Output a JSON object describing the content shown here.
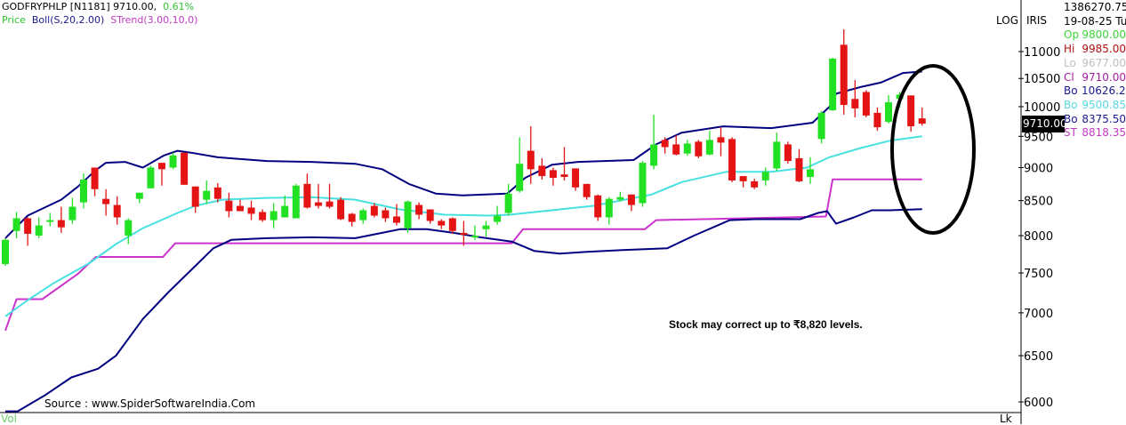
{
  "header": {
    "symbol_line": "GODFRYPHLP [N1181] 9710.00,",
    "change": "0.61%",
    "price_label": "Price",
    "boll_label": "Boll(S,20,2.00)",
    "strend_label": "STrend(3.00,10,0)"
  },
  "axis": {
    "log_label": "LOG",
    "iris_label": "IRIS",
    "price_tag": "9710.00",
    "vol_label": "Vol",
    "vol_unit": "Lk"
  },
  "info_panel": {
    "volume": "1386270.75",
    "date": "19-08-25 Tu",
    "rows": [
      {
        "label": "Op",
        "value": "9800.00",
        "color": "#3ad43a"
      },
      {
        "label": "Hi",
        "value": "9985.00",
        "color": "#b01010"
      },
      {
        "label": "Lo",
        "value": "9677.00",
        "color": "#c0c0c0"
      },
      {
        "label": "Cl",
        "value": "9710.00",
        "color": "#a020a0"
      },
      {
        "label": "Bo",
        "value": "10626.20",
        "color": "#1a1a8c"
      },
      {
        "label": "Bo",
        "value": "9500.85",
        "color": "#5ad8e0"
      },
      {
        "label": "Bo",
        "value": "8375.50",
        "color": "#1a1a8c"
      },
      {
        "label": "ST",
        "value": "8818.35",
        "color": "#c03cc0"
      }
    ]
  },
  "annotation": "Stock may correct up to ₹8,820 levels.",
  "source": "Source : www.SpiderSoftwareIndia.Com",
  "chart_data": {
    "type": "candlestick",
    "y_scale": "log",
    "ylim": [
      5900,
      11500
    ],
    "y_ticks": [
      6000,
      6500,
      7000,
      7500,
      8000,
      8500,
      9000,
      9500,
      10000,
      10500,
      11000
    ],
    "colors": {
      "up": "#22e022",
      "down": "#e41414",
      "upper_band": "#000080",
      "middle_band": "#48e0e0",
      "lower_band": "#000080",
      "supertrend": "#cc33cc",
      "highlight_ellipse": "#000000"
    },
    "candles_ohlc": [
      [
        7617,
        7965,
        7594,
        7942
      ],
      [
        8065,
        8334,
        7965,
        8244
      ],
      [
        8244,
        8257,
        7861,
        8026
      ],
      [
        8000,
        8257,
        7965,
        8142
      ],
      [
        8193,
        8321,
        8129,
        8218
      ],
      [
        8218,
        8410,
        8039,
        8116
      ],
      [
        8218,
        8540,
        8167,
        8410
      ],
      [
        8474,
        8908,
        8385,
        8815
      ],
      [
        9000,
        9000,
        8564,
        8670
      ],
      [
        8526,
        8670,
        8282,
        8449
      ],
      [
        8436,
        8564,
        8154,
        8257
      ],
      [
        8000,
        8244,
        7884,
        8218
      ],
      [
        8526,
        8617,
        8462,
        8617
      ],
      [
        8683,
        9029,
        8683,
        9000
      ],
      [
        9074,
        9074,
        8723,
        8974
      ],
      [
        9000,
        9235,
        8974,
        9191
      ],
      [
        9235,
        9235,
        8736,
        8736
      ],
      [
        8710,
        8710,
        8321,
        8410
      ],
      [
        8513,
        8802,
        8449,
        8645
      ],
      [
        8696,
        8762,
        8474,
        8526
      ],
      [
        8500,
        8617,
        8257,
        8346
      ],
      [
        8423,
        8513,
        8346,
        8346
      ],
      [
        8398,
        8500,
        8218,
        8308
      ],
      [
        8334,
        8372,
        8193,
        8218
      ],
      [
        8218,
        8462,
        8103,
        8346
      ],
      [
        8257,
        8577,
        8257,
        8423
      ],
      [
        8244,
        8749,
        8244,
        8723
      ],
      [
        8749,
        8908,
        8385,
        8398
      ],
      [
        8474,
        8749,
        8385,
        8423
      ],
      [
        8487,
        8749,
        8385,
        8410
      ],
      [
        8513,
        8551,
        8218,
        8231
      ],
      [
        8308,
        8321,
        8129,
        8193
      ],
      [
        8218,
        8385,
        8167,
        8359
      ],
      [
        8423,
        8462,
        8257,
        8282
      ],
      [
        8359,
        8398,
        8193,
        8244
      ],
      [
        8270,
        8449,
        8142,
        8180
      ],
      [
        8103,
        8500,
        8039,
        8487
      ],
      [
        8436,
        8474,
        8231,
        8295
      ],
      [
        8372,
        8372,
        8167,
        8206
      ],
      [
        8206,
        8231,
        8090,
        8142
      ],
      [
        8244,
        8257,
        8026,
        8065
      ],
      [
        8039,
        8206,
        7861,
        8013
      ],
      [
        7977,
        8142,
        7942,
        8000
      ],
      [
        8090,
        8206,
        7988,
        8142
      ],
      [
        8193,
        8423,
        8154,
        8282
      ],
      [
        8321,
        8749,
        8282,
        8604
      ],
      [
        8643,
        9485,
        8617,
        9059
      ],
      [
        9265,
        9666,
        8749,
        8974
      ],
      [
        9029,
        9147,
        8815,
        8868
      ],
      [
        8960,
        9000,
        8723,
        8842
      ],
      [
        8894,
        9324,
        8802,
        8855
      ],
      [
        8987,
        8987,
        8645,
        8696
      ],
      [
        8749,
        8749,
        8513,
        8551
      ],
      [
        8577,
        8590,
        8206,
        8257
      ],
      [
        8257,
        8551,
        8154,
        8526
      ],
      [
        8513,
        8630,
        8487,
        8551
      ],
      [
        8590,
        8590,
        8346,
        8436
      ],
      [
        8462,
        9103,
        8410,
        9074
      ],
      [
        9029,
        9863,
        8974,
        9368
      ],
      [
        9441,
        9485,
        9221,
        9324
      ],
      [
        9368,
        9515,
        9191,
        9206
      ],
      [
        9221,
        9441,
        9191,
        9382
      ],
      [
        9412,
        9441,
        9147,
        9177
      ],
      [
        9206,
        9591,
        9191,
        9441
      ],
      [
        9485,
        9651,
        9177,
        9397
      ],
      [
        9456,
        9485,
        8776,
        8802
      ],
      [
        8868,
        8868,
        8696,
        8789
      ],
      [
        8789,
        8828,
        8670,
        8696
      ],
      [
        8802,
        9000,
        8723,
        8934
      ],
      [
        8987,
        9561,
        8947,
        9412
      ],
      [
        9368,
        9412,
        9059,
        9103
      ],
      [
        9147,
        9294,
        8776,
        8789
      ],
      [
        8855,
        9162,
        8749,
        8974
      ],
      [
        9456,
        9924,
        9382,
        9894
      ],
      [
        9939,
        10883,
        9924,
        10866
      ],
      [
        11130,
        11430,
        9863,
        10030
      ],
      [
        10135,
        10470,
        9818,
        9970
      ],
      [
        10257,
        10288,
        9818,
        9848
      ],
      [
        9894,
        9985,
        9590,
        9650
      ],
      [
        9742,
        10200,
        9712,
        10076
      ],
      [
        10135,
        10257,
        9985,
        10211
      ],
      [
        10196,
        10196,
        9575,
        9666
      ],
      [
        9800,
        9985,
        9677,
        9710
      ]
    ],
    "upper_band": [
      [
        0,
        7965
      ],
      [
        2,
        8282
      ],
      [
        5,
        8513
      ],
      [
        6.5,
        8710
      ],
      [
        8,
        8947
      ],
      [
        9,
        9074
      ],
      [
        10.7,
        9088
      ],
      [
        12.3,
        9000
      ],
      [
        14.2,
        9191
      ],
      [
        15.4,
        9265
      ],
      [
        16.6,
        9235
      ],
      [
        19,
        9162
      ],
      [
        23.4,
        9103
      ],
      [
        27.4,
        9088
      ],
      [
        31.3,
        9059
      ],
      [
        33.7,
        8974
      ],
      [
        36.1,
        8749
      ],
      [
        38.5,
        8604
      ],
      [
        40.9,
        8577
      ],
      [
        44.9,
        8604
      ],
      [
        46.5,
        8842
      ],
      [
        48.9,
        9044
      ],
      [
        51.2,
        9088
      ],
      [
        56.2,
        9118
      ],
      [
        58.2,
        9368
      ],
      [
        60.5,
        9561
      ],
      [
        64.2,
        9666
      ],
      [
        68.5,
        9636
      ],
      [
        72.2,
        9727
      ],
      [
        73.8,
        10015
      ],
      [
        74.3,
        10226
      ],
      [
        76.5,
        10345
      ],
      [
        78.3,
        10425
      ],
      [
        80.3,
        10600
      ],
      [
        82,
        10626.2
      ]
    ],
    "middle_band": [
      [
        0,
        6958
      ],
      [
        1.9,
        7145
      ],
      [
        4.3,
        7367
      ],
      [
        7.5,
        7628
      ],
      [
        9.9,
        7884
      ],
      [
        12.3,
        8103
      ],
      [
        15.4,
        8321
      ],
      [
        17,
        8423
      ],
      [
        19.4,
        8513
      ],
      [
        23.4,
        8540
      ],
      [
        27.4,
        8551
      ],
      [
        31.3,
        8513
      ],
      [
        35.3,
        8372
      ],
      [
        39.3,
        8295
      ],
      [
        43.3,
        8282
      ],
      [
        45.1,
        8295
      ],
      [
        52.6,
        8423
      ],
      [
        57.8,
        8590
      ],
      [
        60.5,
        8776
      ],
      [
        64.5,
        8934
      ],
      [
        68.5,
        8934
      ],
      [
        71.7,
        9000
      ],
      [
        73.7,
        9162
      ],
      [
        76.5,
        9309
      ],
      [
        79.1,
        9427
      ],
      [
        82,
        9500.85
      ]
    ],
    "lower_band": [
      [
        0,
        5904
      ],
      [
        1.1,
        5904
      ],
      [
        3.5,
        6067
      ],
      [
        5.9,
        6260
      ],
      [
        8.3,
        6355
      ],
      [
        9.9,
        6500
      ],
      [
        12.3,
        6926
      ],
      [
        14.6,
        7256
      ],
      [
        17,
        7593
      ],
      [
        18.6,
        7826
      ],
      [
        20.2,
        7942
      ],
      [
        23.4,
        7965
      ],
      [
        27.4,
        7977
      ],
      [
        31.3,
        7965
      ],
      [
        33.7,
        8039
      ],
      [
        35.3,
        8090
      ],
      [
        37.7,
        8090
      ],
      [
        40.1,
        8039
      ],
      [
        42.5,
        7977
      ],
      [
        45.3,
        7919
      ],
      [
        47.3,
        7791
      ],
      [
        49.6,
        7756
      ],
      [
        52,
        7780
      ],
      [
        55.2,
        7803
      ],
      [
        59.2,
        7826
      ],
      [
        61.6,
        8000
      ],
      [
        64.8,
        8218
      ],
      [
        67.1,
        8231
      ],
      [
        71.1,
        8231
      ],
      [
        72.7,
        8321
      ],
      [
        73.5,
        8346
      ],
      [
        74.3,
        8167
      ],
      [
        75.9,
        8257
      ],
      [
        77.5,
        8359
      ],
      [
        79.1,
        8359
      ],
      [
        82,
        8375.5
      ]
    ],
    "supertrend": [
      [
        0,
        6788
      ],
      [
        1,
        7167
      ],
      [
        3.3,
        7167
      ],
      [
        6.5,
        7490
      ],
      [
        8.1,
        7710
      ],
      [
        14.1,
        7710
      ],
      [
        15.2,
        7895
      ],
      [
        45.3,
        7895
      ],
      [
        46.3,
        8090
      ],
      [
        57.2,
        8090
      ],
      [
        58.2,
        8218
      ],
      [
        73.4,
        8270
      ],
      [
        74,
        8818
      ],
      [
        82,
        8818.35
      ]
    ]
  }
}
